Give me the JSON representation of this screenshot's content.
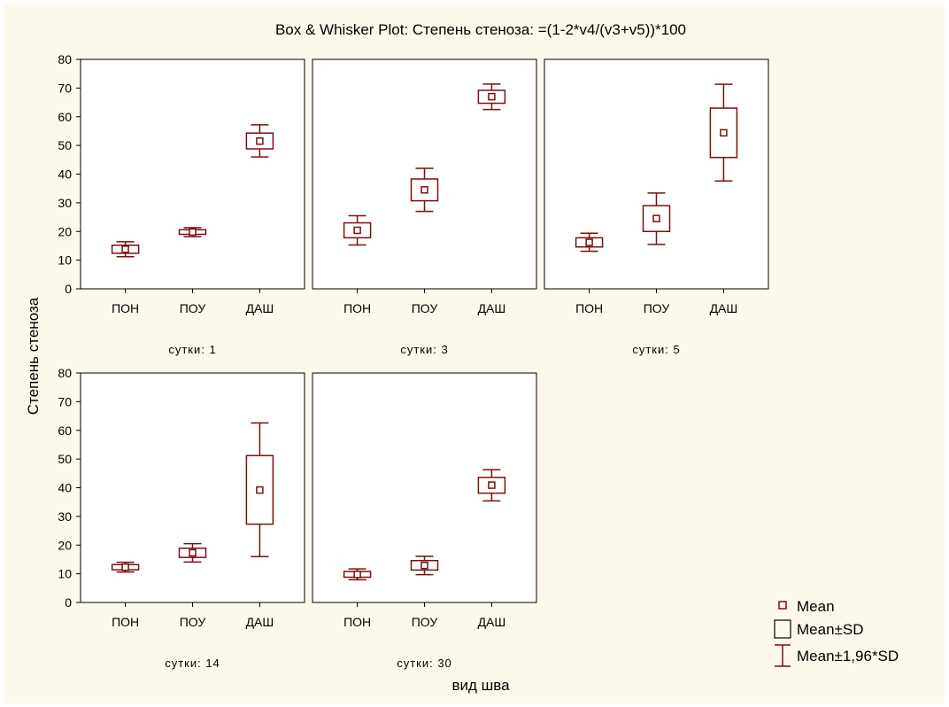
{
  "chart_data": {
    "type": "box",
    "title": "Box & Whisker Plot: Степень стеноза: =(1-2*v4/(v3+v5))*100",
    "xlabel": "вид шва",
    "ylabel": "Степень стеноза",
    "ylim": [
      0,
      80
    ],
    "yticks": [
      0,
      10,
      20,
      30,
      40,
      50,
      60,
      70,
      80
    ],
    "categories": [
      "ПОН",
      "ПОУ",
      "ДАШ"
    ],
    "series_color": "#7a0f0f",
    "panels": [
      {
        "label": "сутки: 1",
        "groups": [
          {
            "category": "ПОН",
            "mean": 13.8,
            "sd_low": 12.4,
            "sd_high": 15.2,
            "ci_low": 11.2,
            "ci_high": 16.4
          },
          {
            "category": "ПОУ",
            "mean": 19.8,
            "sd_low": 19.0,
            "sd_high": 20.6,
            "ci_low": 18.2,
            "ci_high": 21.3
          },
          {
            "category": "ДАШ",
            "mean": 51.5,
            "sd_low": 48.8,
            "sd_high": 54.3,
            "ci_low": 46.0,
            "ci_high": 57.2
          }
        ]
      },
      {
        "label": "сутки: 3",
        "groups": [
          {
            "category": "ПОН",
            "mean": 20.4,
            "sd_low": 17.8,
            "sd_high": 23.0,
            "ci_low": 15.3,
            "ci_high": 25.5
          },
          {
            "category": "ПОУ",
            "mean": 34.5,
            "sd_low": 30.7,
            "sd_high": 38.3,
            "ci_low": 27.0,
            "ci_high": 42.0
          },
          {
            "category": "ДАШ",
            "mean": 67.0,
            "sd_low": 64.7,
            "sd_high": 69.2,
            "ci_low": 62.5,
            "ci_high": 71.4
          }
        ]
      },
      {
        "label": "сутки: 5",
        "groups": [
          {
            "category": "ПОН",
            "mean": 16.2,
            "sd_low": 14.6,
            "sd_high": 17.8,
            "ci_low": 13.1,
            "ci_high": 19.4
          },
          {
            "category": "ПОУ",
            "mean": 24.5,
            "sd_low": 20.0,
            "sd_high": 29.0,
            "ci_low": 15.5,
            "ci_high": 33.4
          },
          {
            "category": "ДАШ",
            "mean": 54.4,
            "sd_low": 45.8,
            "sd_high": 63.0,
            "ci_low": 37.6,
            "ci_high": 71.3
          }
        ]
      },
      {
        "label": "сутки: 14",
        "groups": [
          {
            "category": "ПОН",
            "mean": 12.3,
            "sd_low": 11.4,
            "sd_high": 13.2,
            "ci_low": 10.6,
            "ci_high": 14.0
          },
          {
            "category": "ПОУ",
            "mean": 17.3,
            "sd_low": 15.7,
            "sd_high": 18.9,
            "ci_low": 14.1,
            "ci_high": 20.5
          },
          {
            "category": "ДАШ",
            "mean": 39.2,
            "sd_low": 27.3,
            "sd_high": 51.2,
            "ci_low": 16.0,
            "ci_high": 62.6
          }
        ]
      },
      {
        "label": "сутки: 30",
        "groups": [
          {
            "category": "ПОН",
            "mean": 9.8,
            "sd_low": 8.8,
            "sd_high": 10.8,
            "ci_low": 7.9,
            "ci_high": 11.7
          },
          {
            "category": "ПОУ",
            "mean": 12.9,
            "sd_low": 11.3,
            "sd_high": 14.6,
            "ci_low": 9.7,
            "ci_high": 16.1
          },
          {
            "category": "ДАШ",
            "mean": 40.9,
            "sd_low": 38.1,
            "sd_high": 43.6,
            "ci_low": 35.4,
            "ci_high": 46.3
          }
        ]
      }
    ],
    "legend": {
      "placement": "bottom-right",
      "items": [
        {
          "symbol": "mean-marker",
          "label": "Mean"
        },
        {
          "symbol": "sd-box",
          "label": "Mean±SD"
        },
        {
          "symbol": "whisker",
          "label": "Mean±1,96*SD"
        }
      ]
    },
    "grid": false
  }
}
